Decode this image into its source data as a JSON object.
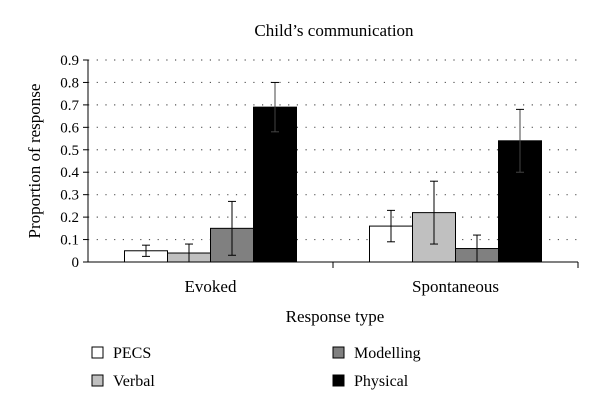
{
  "chart_data": {
    "type": "bar",
    "title": "Child’s communication",
    "xlabel": "Response type",
    "ylabel": "Proportion of response",
    "ylim": [
      0,
      0.9
    ],
    "yticks": [
      "0",
      "0.1",
      "0.2",
      "0.3",
      "0.4",
      "0.5",
      "0.6",
      "0.7",
      "0.8",
      "0.9"
    ],
    "grid": "dotted horizontal",
    "categories": [
      "Evoked",
      "Spontaneous"
    ],
    "series": [
      {
        "name": "PECS",
        "values": [
          0.05,
          0.16
        ],
        "errors": [
          0.025,
          0.07
        ],
        "color": "#ffffff"
      },
      {
        "name": "Verbal",
        "values": [
          0.04,
          0.22
        ],
        "errors": [
          0.04,
          0.14
        ],
        "color": "#c0c0c0"
      },
      {
        "name": "Modelling",
        "values": [
          0.15,
          0.06
        ],
        "errors": [
          0.12,
          0.06
        ],
        "color": "#808080"
      },
      {
        "name": "Physical",
        "values": [
          0.69,
          0.54
        ],
        "errors": [
          0.11,
          0.14
        ],
        "color": "#000000"
      }
    ],
    "legend_placement": "bottom"
  }
}
